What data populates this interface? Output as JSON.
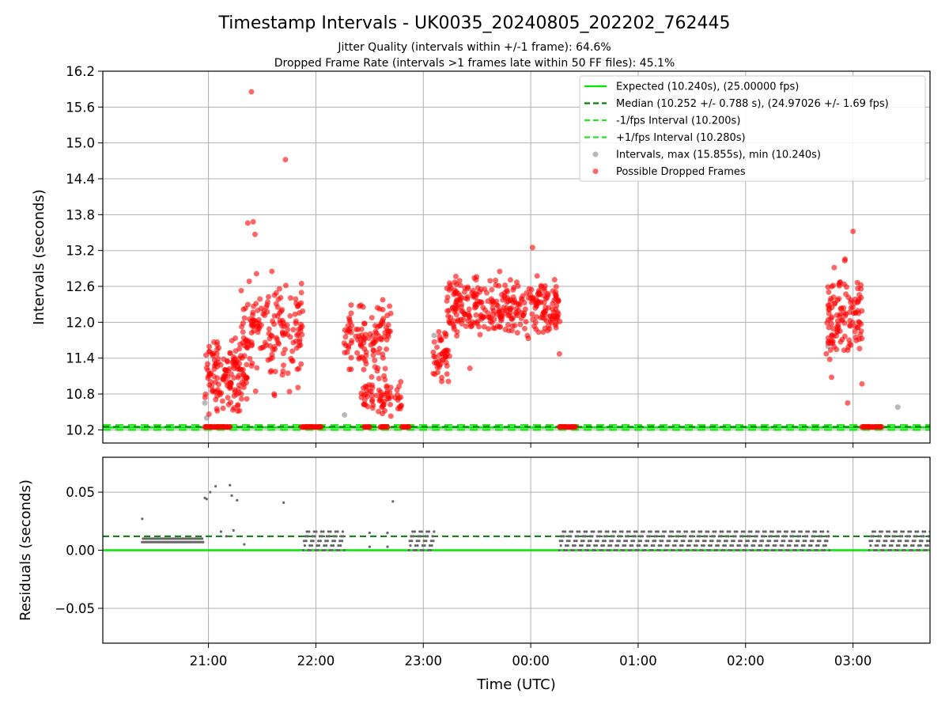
{
  "figure": {
    "title": "Timestamp Intervals - UK0035_20240805_202202_762445",
    "subtitle_1": "Jitter Quality (intervals within +/-1 frame): 64.6%",
    "subtitle_2": "Dropped Frame Rate (intervals >1 frames late within 50 FF files): 45.1%"
  },
  "chart_data": [
    {
      "type": "scatter",
      "name": "intervals",
      "xlabel": "",
      "ylabel": "Intervals (seconds)",
      "xlim": [
        "20:01",
        "03:43"
      ],
      "ylim": [
        9.98,
        16.2
      ],
      "yticks": [
        "10.2",
        "10.8",
        "11.4",
        "12.0",
        "12.6",
        "13.2",
        "13.8",
        "14.4",
        "15.0",
        "15.6",
        "16.2"
      ],
      "xticks": [
        "21:00",
        "22:00",
        "23:00",
        "00:00",
        "01:00",
        "02:00",
        "03:00"
      ],
      "grid": true,
      "legend_position": "top-right",
      "legend": [
        "Expected (10.240s), (25.00000 fps)",
        "Median (10.252 +/- 0.788 s), (24.97026 +/- 1.69 fps)",
        "-1/fps Interval (10.200s)",
        "+1/fps Interval (10.280s)",
        "Intervals, max (15.855s), min (10.240s)",
        "Possible Dropped Frames"
      ],
      "reference_lines": {
        "expected": 10.24,
        "median": 10.252,
        "minus_1_fps": 10.2,
        "plus_1_fps": 10.28
      },
      "colors": {
        "expected": "#00e600",
        "median": "#007f00",
        "fps_bounds": "#22e622",
        "intervals": "#888888",
        "dropped": "#ff0000"
      },
      "series": [
        {
          "name": "Possible Dropped Frames",
          "clusters": [
            {
              "start": "20:58",
              "end": "21:22",
              "ymin": 10.25,
              "ymax": 11.95,
              "count": 140
            },
            {
              "start": "21:18",
              "end": "21:53",
              "ymin": 10.6,
              "ymax": 13.1,
              "count": 170
            },
            {
              "start": "22:15",
              "end": "22:42",
              "ymin": 11.0,
              "ymax": 12.55,
              "count": 110
            },
            {
              "start": "22:25",
              "end": "22:48",
              "ymin": 10.3,
              "ymax": 11.2,
              "count": 70
            },
            {
              "start": "23:05",
              "end": "23:15",
              "ymin": 10.85,
              "ymax": 12.0,
              "count": 45
            },
            {
              "start": "23:13",
              "end": "00:17",
              "ymin": 11.5,
              "ymax": 12.95,
              "count": 320
            },
            {
              "start": "02:45",
              "end": "03:05",
              "ymin": 11.0,
              "ymax": 13.2,
              "count": 120
            }
          ],
          "outliers": [
            {
              "x": "21:24",
              "y": 15.855
            },
            {
              "x": "21:43",
              "y": 14.72
            },
            {
              "x": "21:25",
              "y": 13.68
            },
            {
              "x": "21:26",
              "y": 13.47
            },
            {
              "x": "21:22",
              "y": 13.66
            },
            {
              "x": "00:01",
              "y": 13.25
            },
            {
              "x": "03:00",
              "y": 13.52
            },
            {
              "x": "23:26",
              "y": 11.23
            },
            {
              "x": "00:16",
              "y": 11.47
            },
            {
              "x": "02:48",
              "y": 11.08
            },
            {
              "x": "02:57",
              "y": 10.65
            },
            {
              "x": "03:05",
              "y": 10.97
            }
          ],
          "baseline_runs": [
            {
              "start": "20:58",
              "end": "21:12",
              "y": 10.25
            },
            {
              "start": "21:52",
              "end": "22:03",
              "y": 10.25
            },
            {
              "start": "22:27",
              "end": "22:30",
              "y": 10.25
            },
            {
              "start": "22:36",
              "end": "22:40",
              "y": 10.25
            },
            {
              "start": "22:48",
              "end": "22:52",
              "y": 10.25
            },
            {
              "start": "00:16",
              "end": "00:25",
              "y": 10.25
            },
            {
              "start": "03:05",
              "end": "03:16",
              "y": 10.25
            }
          ]
        },
        {
          "name": "Intervals",
          "points": [
            {
              "x": "20:58",
              "y": 10.65
            },
            {
              "x": "20:59",
              "y": 10.4
            },
            {
              "x": "22:16",
              "y": 10.45
            },
            {
              "x": "23:06",
              "y": 11.78
            },
            {
              "x": "02:46",
              "y": 11.6
            },
            {
              "x": "03:25",
              "y": 10.58
            }
          ]
        }
      ]
    },
    {
      "type": "scatter",
      "name": "residuals",
      "xlabel": "Time (UTC)",
      "ylabel": "Residuals (seconds)",
      "xlim": [
        "20:01",
        "03:43"
      ],
      "ylim": [
        -0.08,
        0.08
      ],
      "yticks": [
        "0.05",
        "0.00",
        "−0.05"
      ],
      "xticks": [
        "21:00",
        "22:00",
        "23:00",
        "00:00",
        "01:00",
        "02:00",
        "03:00"
      ],
      "grid": true,
      "reference_lines": {
        "expected": 0.0,
        "median": 0.012
      },
      "series": [
        {
          "name": "Residuals",
          "bands": [
            {
              "start": "20:23",
              "end": "20:57",
              "values": [
                0.007,
                0.01
              ],
              "step_minutes": 0.5
            },
            {
              "start": "21:53",
              "end": "22:16",
              "values": [
                0.0,
                0.004,
                0.008,
                0.012,
                0.016
              ],
              "step_minutes": 0.8
            },
            {
              "start": "22:52",
              "end": "23:06",
              "values": [
                0.0,
                0.004,
                0.008,
                0.012,
                0.016
              ],
              "step_minutes": 0.8
            },
            {
              "start": "00:16",
              "end": "02:47",
              "values": [
                0.0,
                0.004,
                0.008,
                0.012,
                0.016
              ],
              "step_minutes": 0.8
            },
            {
              "start": "03:09",
              "end": "03:43",
              "values": [
                0.0,
                0.004,
                0.008,
                0.012,
                0.016
              ],
              "step_minutes": 0.8
            }
          ],
          "points": [
            {
              "x": "20:23",
              "y": 0.027
            },
            {
              "x": "20:58",
              "y": 0.045
            },
            {
              "x": "20:59",
              "y": 0.044
            },
            {
              "x": "21:01",
              "y": 0.05
            },
            {
              "x": "21:04",
              "y": 0.055
            },
            {
              "x": "21:12",
              "y": 0.056
            },
            {
              "x": "21:13",
              "y": 0.047
            },
            {
              "x": "21:16",
              "y": 0.043
            },
            {
              "x": "21:42",
              "y": 0.041
            },
            {
              "x": "22:43",
              "y": 0.042
            },
            {
              "x": "21:07",
              "y": 0.016
            },
            {
              "x": "21:10",
              "y": 0.012
            },
            {
              "x": "21:14",
              "y": 0.017
            },
            {
              "x": "21:20",
              "y": 0.005
            },
            {
              "x": "22:30",
              "y": 0.015
            },
            {
              "x": "22:30",
              "y": 0.003
            },
            {
              "x": "22:40",
              "y": 0.015
            },
            {
              "x": "22:40",
              "y": 0.003
            }
          ]
        }
      ]
    }
  ]
}
